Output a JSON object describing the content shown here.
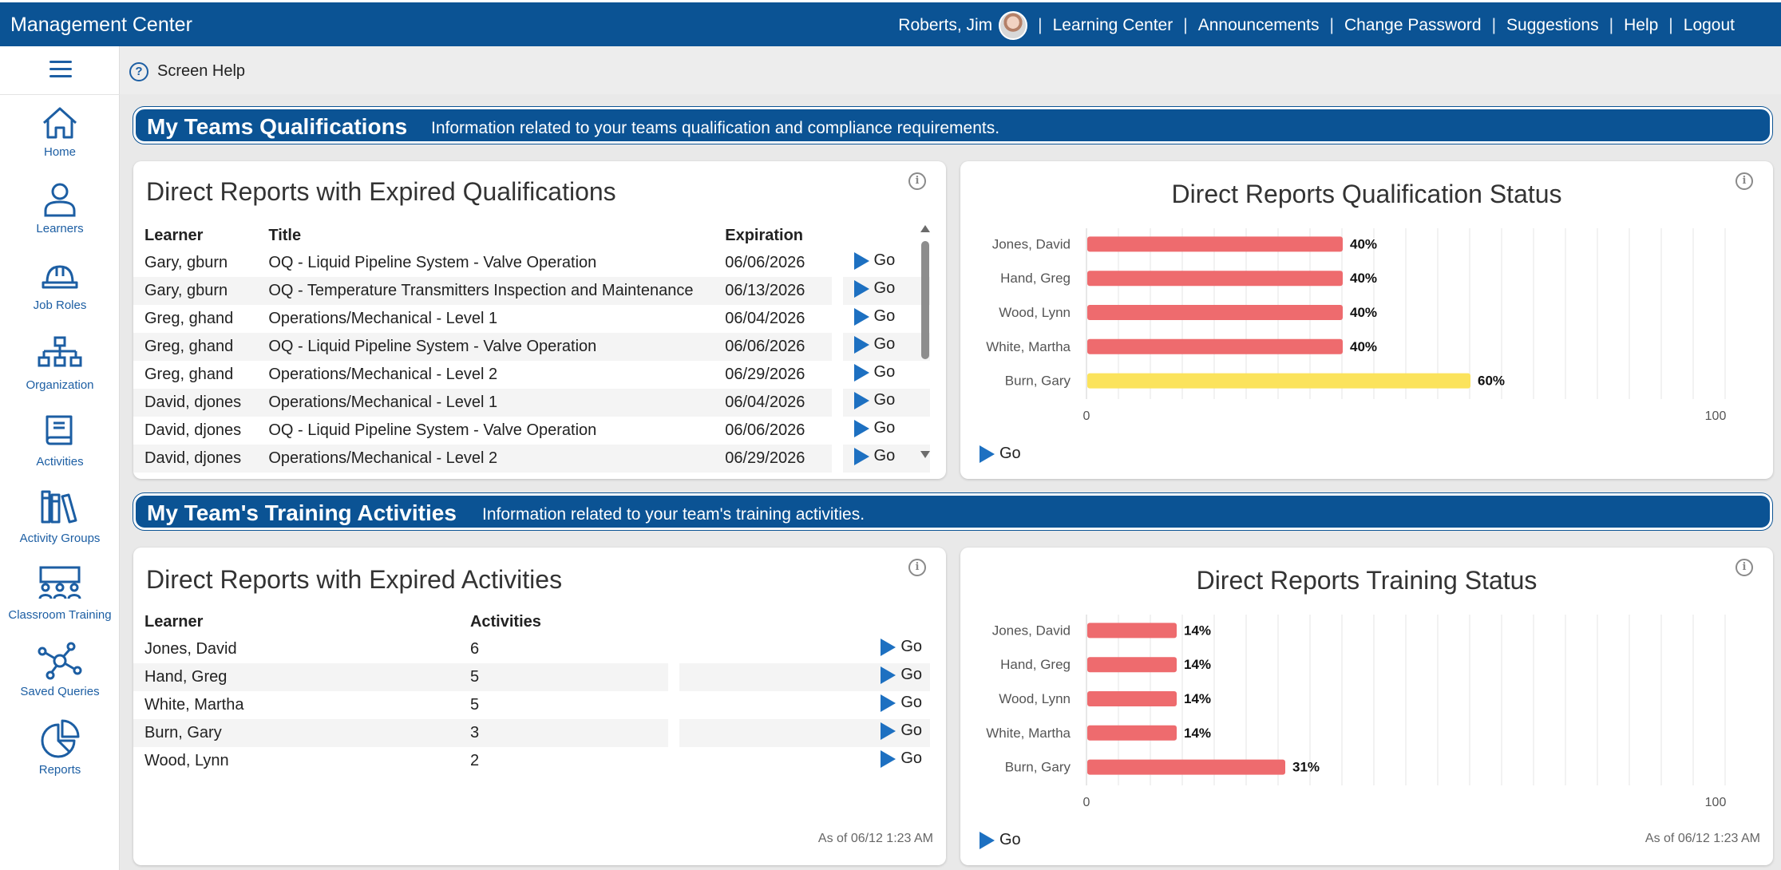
{
  "header": {
    "app_title": "Management Center",
    "user_name": "Roberts, Jim",
    "links": [
      "Learning Center",
      "Announcements",
      "Change Password",
      "Suggestions",
      "Help",
      "Logout"
    ]
  },
  "sidebar": {
    "items": [
      {
        "label": "Home",
        "icon": "home-icon"
      },
      {
        "label": "Learners",
        "icon": "person-icon"
      },
      {
        "label": "Job Roles",
        "icon": "hard-hat-icon"
      },
      {
        "label": "Organization",
        "icon": "org-chart-icon"
      },
      {
        "label": "Activities",
        "icon": "book-icon"
      },
      {
        "label": "Activity Groups",
        "icon": "books-icon"
      },
      {
        "label": "Classroom Training",
        "icon": "classroom-icon"
      },
      {
        "label": "Saved Queries",
        "icon": "network-icon"
      },
      {
        "label": "Reports",
        "icon": "pie-chart-icon"
      }
    ]
  },
  "subbar": {
    "screen_help": "Screen Help"
  },
  "qualifications_section": {
    "title": "My Teams Qualifications",
    "description": "Information related to your teams qualification and compliance requirements."
  },
  "training_section": {
    "title": "My Team's Training Activities",
    "description": "Information related to your team's training activities."
  },
  "expired_qualifications": {
    "title": "Direct Reports with Expired Qualifications",
    "columns": [
      "Learner",
      "Title",
      "Expiration"
    ],
    "go_label": "Go",
    "rows": [
      {
        "learner": "Gary, gburn",
        "title": "OQ - Liquid Pipeline System - Valve Operation",
        "expiration": "06/06/2026"
      },
      {
        "learner": "Gary, gburn",
        "title": "OQ - Temperature Transmitters Inspection and Maintenance",
        "expiration": "06/13/2026"
      },
      {
        "learner": "Greg, ghand",
        "title": "Operations/Mechanical - Level 1",
        "expiration": "06/04/2026"
      },
      {
        "learner": "Greg, ghand",
        "title": "OQ - Liquid Pipeline System - Valve Operation",
        "expiration": "06/06/2026"
      },
      {
        "learner": "Greg, ghand",
        "title": "Operations/Mechanical - Level 2",
        "expiration": "06/29/2026"
      },
      {
        "learner": "David, djones",
        "title": "Operations/Mechanical - Level 1",
        "expiration": "06/04/2026"
      },
      {
        "learner": "David, djones",
        "title": "OQ - Liquid Pipeline System - Valve Operation",
        "expiration": "06/06/2026"
      },
      {
        "learner": "David, djones",
        "title": "Operations/Mechanical - Level 2",
        "expiration": "06/29/2026"
      }
    ]
  },
  "expired_activities": {
    "title": "Direct Reports with Expired Activities",
    "columns": [
      "Learner",
      "Activities"
    ],
    "go_label": "Go",
    "rows": [
      {
        "learner": "Jones, David",
        "activities": "6"
      },
      {
        "learner": "Hand, Greg",
        "activities": "5"
      },
      {
        "learner": "White, Martha",
        "activities": "5"
      },
      {
        "learner": "Burn, Gary",
        "activities": "3"
      },
      {
        "learner": "Wood, Lynn",
        "activities": "2"
      }
    ],
    "as_of": "As of 06/12 1:23 AM"
  },
  "qualification_status": {
    "go_label": "Go"
  },
  "training_status": {
    "go_label": "Go",
    "as_of": "As of 06/12 1:23 AM"
  },
  "chart_data": [
    {
      "type": "bar",
      "orientation": "horizontal",
      "title": "Direct Reports Qualification Status",
      "categories": [
        "Jones, David",
        "Hand, Greg",
        "Wood, Lynn",
        "White, Martha",
        "Burn, Gary"
      ],
      "values": [
        40,
        40,
        40,
        40,
        60
      ],
      "data_labels": [
        "40%",
        "40%",
        "40%",
        "40%",
        "60%"
      ],
      "colors": [
        "#ee6b6e",
        "#ee6b6e",
        "#ee6b6e",
        "#ee6b6e",
        "#fbe35c"
      ],
      "xlim": [
        0,
        100
      ],
      "xticks": [
        "0",
        "100"
      ],
      "grid": true
    },
    {
      "type": "bar",
      "orientation": "horizontal",
      "title": "Direct Reports Training Status",
      "categories": [
        "Jones, David",
        "Hand, Greg",
        "Wood, Lynn",
        "White, Martha",
        "Burn, Gary"
      ],
      "values": [
        14,
        14,
        14,
        14,
        31
      ],
      "data_labels": [
        "14%",
        "14%",
        "14%",
        "14%",
        "31%"
      ],
      "colors": [
        "#ee6b6e",
        "#ee6b6e",
        "#ee6b6e",
        "#ee6b6e",
        "#ee6b6e"
      ],
      "xlim": [
        0,
        100
      ],
      "xticks": [
        "0",
        "100"
      ],
      "grid": true
    }
  ]
}
